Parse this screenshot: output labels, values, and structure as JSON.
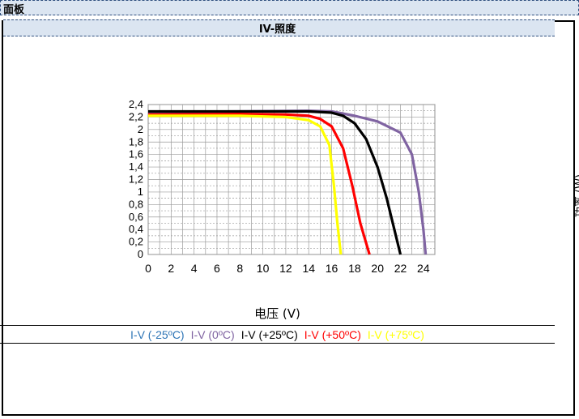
{
  "sheet": {
    "title": "面板"
  },
  "chart_data": {
    "type": "line",
    "title": "IV-照度",
    "xlabel": "电压 (V)",
    "y2label": "功率 (W)",
    "xlim": [
      0,
      25
    ],
    "ylim": [
      0,
      2.4
    ],
    "x_ticks": [
      "0",
      "2",
      "4",
      "6",
      "8",
      "10",
      "12",
      "14",
      "16",
      "18",
      "20",
      "22",
      "24"
    ],
    "y_ticks": [
      "0",
      "0,2",
      "0,4",
      "0,6",
      "0,8",
      "1",
      "1,2",
      "1,4",
      "1,6",
      "1,8",
      "2",
      "2,2",
      "2,4"
    ],
    "grid": true,
    "legend_position": "bottom",
    "series": [
      {
        "name": "I-V (-25ºC)",
        "color": "#2e75b6",
        "points": []
      },
      {
        "name": "I-V (0ºC)",
        "color": "#8064a2",
        "points": [
          [
            0,
            2.28
          ],
          [
            8,
            2.29
          ],
          [
            14,
            2.3
          ],
          [
            16,
            2.29
          ],
          [
            18,
            2.22
          ],
          [
            20,
            2.13
          ],
          [
            22,
            1.95
          ],
          [
            23,
            1.6
          ],
          [
            23.6,
            1.0
          ],
          [
            24,
            0.4
          ],
          [
            24.2,
            0
          ]
        ]
      },
      {
        "name": "I-V (+25ºC)",
        "color": "#000000",
        "points": [
          [
            0,
            2.29
          ],
          [
            8,
            2.29
          ],
          [
            14,
            2.29
          ],
          [
            16,
            2.27
          ],
          [
            17,
            2.22
          ],
          [
            18,
            2.1
          ],
          [
            19,
            1.85
          ],
          [
            20,
            1.4
          ],
          [
            20.8,
            0.9
          ],
          [
            21.4,
            0.45
          ],
          [
            22,
            0
          ]
        ]
      },
      {
        "name": "I-V (+50ºC)",
        "color": "#ff0000",
        "points": [
          [
            0,
            2.24
          ],
          [
            8,
            2.25
          ],
          [
            12,
            2.24
          ],
          [
            14,
            2.22
          ],
          [
            15,
            2.17
          ],
          [
            16,
            2.05
          ],
          [
            17,
            1.7
          ],
          [
            17.8,
            1.1
          ],
          [
            18.5,
            0.5
          ],
          [
            19.3,
            0
          ]
        ]
      },
      {
        "name": "I-V (+75ºC)",
        "color": "#ffff00",
        "points": [
          [
            0,
            2.22
          ],
          [
            8,
            2.22
          ],
          [
            12,
            2.2
          ],
          [
            14,
            2.15
          ],
          [
            15,
            2.05
          ],
          [
            15.8,
            1.75
          ],
          [
            16.2,
            1.1
          ],
          [
            16.5,
            0.5
          ],
          [
            16.8,
            0
          ]
        ]
      }
    ]
  }
}
